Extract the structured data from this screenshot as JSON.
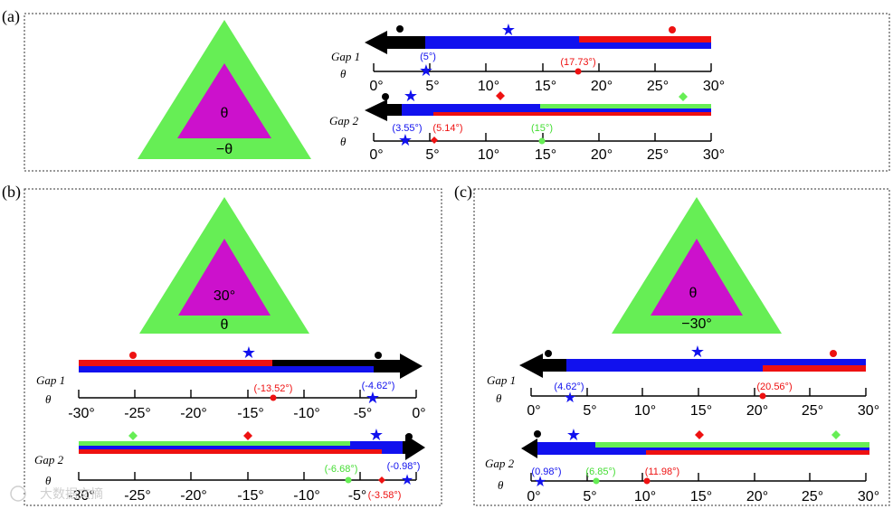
{
  "colors": {
    "green": "#66ee55",
    "magenta": "#cc11cc",
    "blue": "#1111ee",
    "red": "#ee1111",
    "black": "#000000"
  },
  "panels": [
    {
      "label": "(a)",
      "triangle": {
        "inner": "θ",
        "outer": "−θ"
      },
      "gap1": {
        "gap": "Gap 1",
        "theta": "θ"
      },
      "gap2": {
        "gap": "Gap 2",
        "theta": "θ"
      },
      "ticks": [
        "0°",
        "5°",
        "10°",
        "15°",
        "20°",
        "25°",
        "30°"
      ],
      "gap1_annotations": [
        {
          "text": "(5°)",
          "color": "blue"
        },
        {
          "text": "(17.73°)",
          "color": "red"
        }
      ],
      "gap2_annotations": [
        {
          "text": "(3.55°)",
          "color": "blue"
        },
        {
          "text": "(5.14°)",
          "color": "red"
        },
        {
          "text": "(15°)",
          "color": "green"
        }
      ]
    },
    {
      "label": "(b)",
      "triangle": {
        "inner": "30°",
        "outer": "θ"
      },
      "gap1": {
        "gap": "Gap 1",
        "theta": "θ"
      },
      "gap2": {
        "gap": "Gap 2",
        "theta": "θ"
      },
      "ticks": [
        "-30°",
        "-25°",
        "-20°",
        "-15°",
        "-10°",
        "-5°",
        "0°"
      ],
      "gap1_annotations": [
        {
          "text": "(-13.52°)",
          "color": "red"
        },
        {
          "text": "(-4.62°)",
          "color": "blue"
        }
      ],
      "gap2_annotations": [
        {
          "text": "(-6.68°)",
          "color": "green"
        },
        {
          "text": "(-0.98°)",
          "color": "blue"
        },
        {
          "text": "(-3.58°)",
          "color": "red"
        }
      ]
    },
    {
      "label": "(c)",
      "triangle": {
        "inner": "θ",
        "outer": "−30°"
      },
      "gap1": {
        "gap": "Gap 1",
        "theta": "θ"
      },
      "gap2": {
        "gap": "Gap 2",
        "theta": "θ"
      },
      "ticks": [
        "0°",
        "5°",
        "10°",
        "15°",
        "20°",
        "25°",
        "30°"
      ],
      "gap1_annotations": [
        {
          "text": "(4.62°)",
          "color": "blue"
        },
        {
          "text": "(20.56°)",
          "color": "red"
        }
      ],
      "gap2_annotations": [
        {
          "text": "(0.98°)",
          "color": "blue"
        },
        {
          "text": "(6.85°)",
          "color": "green"
        },
        {
          "text": "(11.98°)",
          "color": "red"
        }
      ]
    }
  ],
  "watermark": "大数据文摘"
}
